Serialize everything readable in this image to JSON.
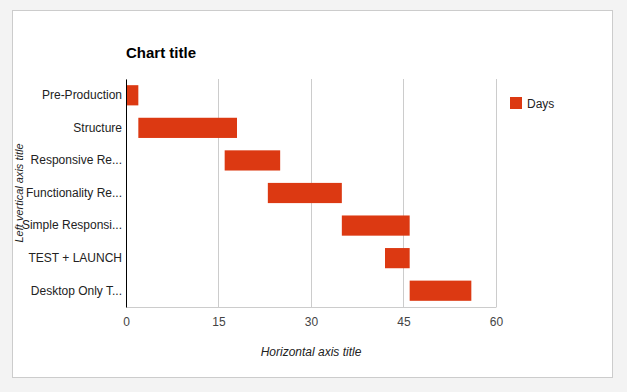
{
  "chart_data": {
    "type": "bar",
    "orientation": "horizontal",
    "title": "Chart title",
    "x_label": "Horizontal axis title",
    "y_label": "Left vertical axis title",
    "categories": [
      "Pre-Production",
      "Structure",
      "Responsive Re...",
      "Functionality Re...",
      "Simple Responsi...",
      "TEST + LAUNCH",
      "Desktop Only T..."
    ],
    "series": [
      {
        "name": "Days",
        "color": "#dc3912",
        "starts": [
          0,
          2,
          16,
          23,
          35,
          42,
          46
        ],
        "values": [
          2,
          16,
          9,
          12,
          11,
          4,
          10
        ]
      }
    ],
    "xlim": [
      0,
      60
    ],
    "xticks": [
      0,
      15,
      30,
      45,
      60
    ],
    "grid": true,
    "legend": "top-right"
  }
}
